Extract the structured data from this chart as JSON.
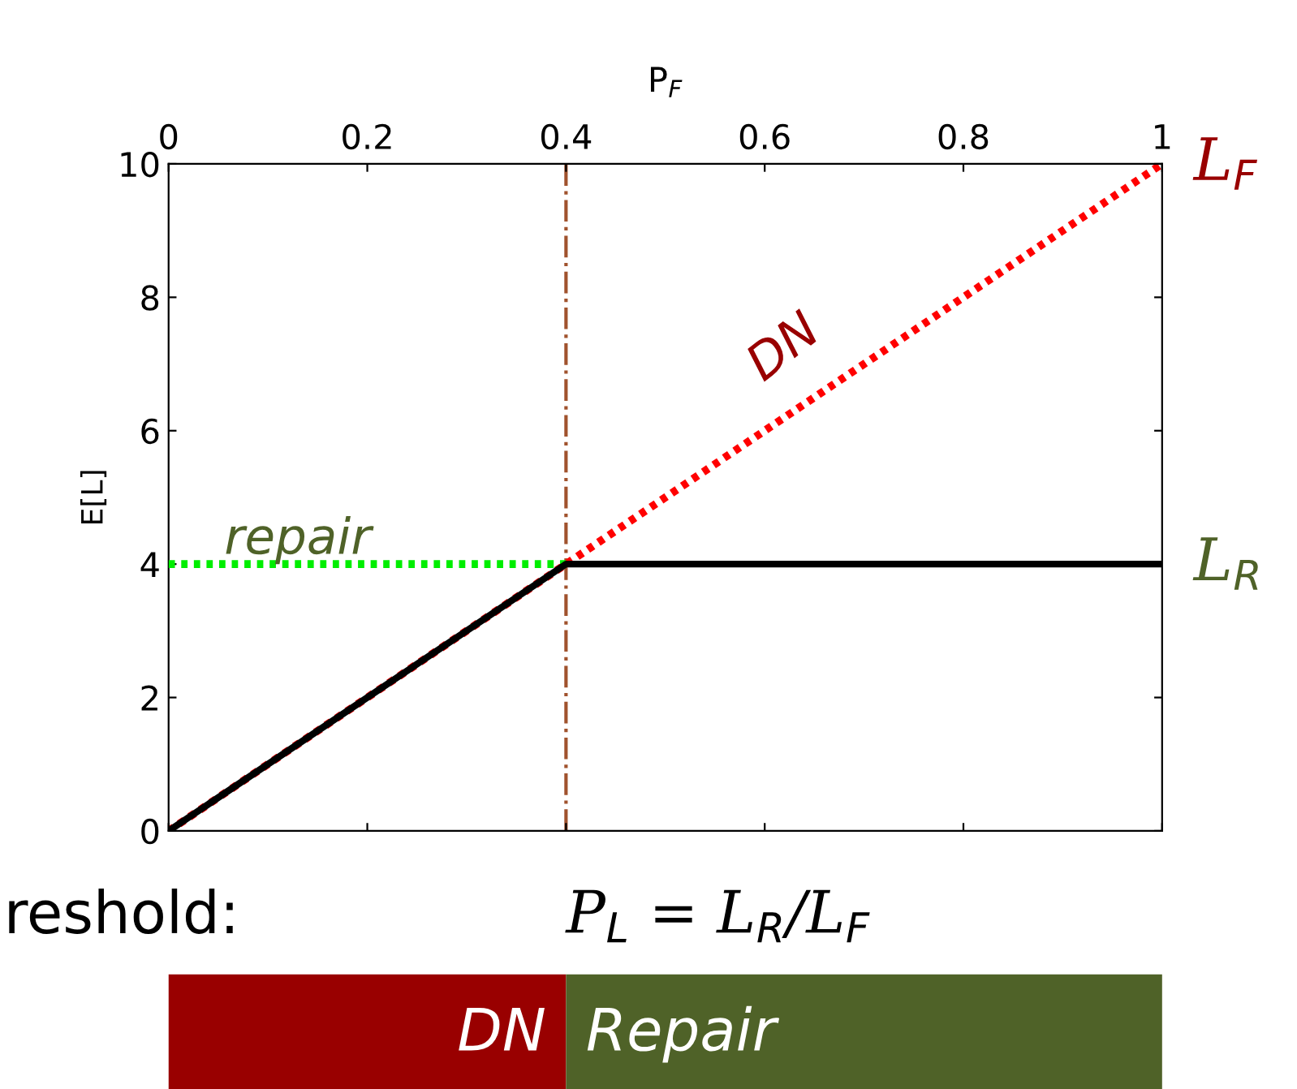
{
  "chart_data": {
    "type": "line",
    "xlabel": "P$_{F}$",
    "ylabel": "E[L]",
    "xlim": [
      0,
      1
    ],
    "ylim": [
      0,
      10
    ],
    "xticks": [
      0,
      0.2,
      0.4,
      0.6,
      0.8,
      1
    ],
    "yticks": [
      0,
      2,
      4,
      6,
      8,
      10
    ],
    "grid": false,
    "marker": "none",
    "series": [
      {
        "color": "#ff0000",
        "x": [
          0,
          1
        ],
        "values": [
          0,
          10
        ],
        "line_style": "dotted"
      },
      {
        "color": "#00ee00",
        "x": [
          0,
          0.4
        ],
        "values": [
          4,
          4
        ],
        "line_style": "dotted"
      },
      {
        "color": "#000000",
        "x": [
          0,
          0.4,
          1
        ],
        "values": [
          0,
          4,
          4
        ],
        "line_style": "solid"
      }
    ],
    "ref_lines": [
      {
        "axis": "x",
        "value": 0.4,
        "label": "P$_{L}$ = L$_{R}$/L$_{F}$",
        "color": "#a0522d",
        "line_style": "dashdot"
      }
    ],
    "annotations": [
      "DN",
      "repair",
      "L$_{F}$",
      "L$_{R}$",
      "reshold:",
      "DN",
      "Repair"
    ]
  }
}
